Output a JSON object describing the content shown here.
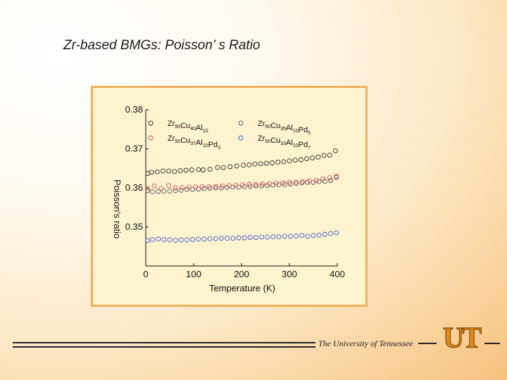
{
  "slide": {
    "title": "Zr-based BMGs: Poisson’ s Ratio",
    "footer_text": "The University of Tennessee",
    "logo_text": "UT"
  },
  "colors": {
    "frame_border": "#f2b05c",
    "plot_background": "#fdf3cf",
    "logo": "#e08a1c"
  },
  "chart_data": {
    "type": "scatter",
    "xlabel": "Temperature (K)",
    "ylabel": "Poisson's ratio",
    "xlim": [
      0,
      400
    ],
    "ylim": [
      0.34,
      0.38
    ],
    "x_ticks": [
      "0",
      "100",
      "200",
      "300",
      "400"
    ],
    "y_ticks": [
      "0.38",
      "0.37",
      "0.36",
      "0.35"
    ],
    "legend_placement": "top",
    "series": [
      {
        "legend_main": [
          "Zr",
          "Cu",
          "Al"
        ],
        "legend_subs": [
          "50",
          "40",
          "10"
        ],
        "color": "#2a2a2a",
        "points": [
          [
            4,
            0.3637
          ],
          [
            12,
            0.364
          ],
          [
            24,
            0.3641
          ],
          [
            36,
            0.3643
          ],
          [
            48,
            0.3643
          ],
          [
            60,
            0.3642
          ],
          [
            72,
            0.3644
          ],
          [
            84,
            0.3645
          ],
          [
            96,
            0.3646
          ],
          [
            110,
            0.3647
          ],
          [
            120,
            0.3646
          ],
          [
            134,
            0.3648
          ],
          [
            150,
            0.3652
          ],
          [
            162,
            0.3652
          ],
          [
            176,
            0.3654
          ],
          [
            190,
            0.3656
          ],
          [
            204,
            0.3658
          ],
          [
            216,
            0.3659
          ],
          [
            228,
            0.3661
          ],
          [
            240,
            0.3662
          ],
          [
            252,
            0.3663
          ],
          [
            264,
            0.3664
          ],
          [
            276,
            0.3666
          ],
          [
            288,
            0.3667
          ],
          [
            300,
            0.3669
          ],
          [
            312,
            0.3671
          ],
          [
            324,
            0.3672
          ],
          [
            336,
            0.3675
          ],
          [
            348,
            0.3677
          ],
          [
            360,
            0.3679
          ],
          [
            372,
            0.3683
          ],
          [
            384,
            0.3684
          ],
          [
            396,
            0.3695
          ]
        ]
      },
      {
        "legend_main": [
          "Zr",
          "Cu",
          "Al",
          "Pd"
        ],
        "legend_subs": [
          "50",
          "35",
          "10",
          "5"
        ],
        "color": "#555566",
        "points": [
          [
            4,
            0.3593
          ],
          [
            14,
            0.359
          ],
          [
            26,
            0.3591
          ],
          [
            38,
            0.3592
          ],
          [
            50,
            0.3592
          ],
          [
            62,
            0.3593
          ],
          [
            74,
            0.3594
          ],
          [
            86,
            0.3596
          ],
          [
            98,
            0.3596
          ],
          [
            110,
            0.3597
          ],
          [
            122,
            0.3598
          ],
          [
            134,
            0.3599
          ],
          [
            146,
            0.36
          ],
          [
            158,
            0.36
          ],
          [
            170,
            0.3601
          ],
          [
            182,
            0.3602
          ],
          [
            194,
            0.3602
          ],
          [
            206,
            0.3603
          ],
          [
            218,
            0.3604
          ],
          [
            230,
            0.3605
          ],
          [
            242,
            0.3605
          ],
          [
            254,
            0.3606
          ],
          [
            266,
            0.3607
          ],
          [
            278,
            0.3608
          ],
          [
            290,
            0.3609
          ],
          [
            302,
            0.361
          ],
          [
            314,
            0.3611
          ],
          [
            326,
            0.3613
          ],
          [
            338,
            0.3614
          ],
          [
            350,
            0.3614
          ],
          [
            362,
            0.3616
          ],
          [
            374,
            0.3617
          ],
          [
            386,
            0.3619
          ],
          [
            398,
            0.3627
          ]
        ]
      },
      {
        "legend_main": [
          "Zr",
          "Cu",
          "Al",
          "Pd"
        ],
        "legend_subs": [
          "50",
          "37",
          "10",
          "3"
        ],
        "color": "#d0505c",
        "points": [
          [
            4,
            0.3599
          ],
          [
            18,
            0.3605
          ],
          [
            32,
            0.3599
          ],
          [
            48,
            0.3606
          ],
          [
            62,
            0.36
          ],
          [
            76,
            0.3601
          ],
          [
            90,
            0.3602
          ],
          [
            104,
            0.3602
          ],
          [
            118,
            0.3603
          ],
          [
            132,
            0.3603
          ],
          [
            146,
            0.3604
          ],
          [
            160,
            0.3605
          ],
          [
            174,
            0.3606
          ],
          [
            188,
            0.3607
          ],
          [
            202,
            0.3608
          ],
          [
            216,
            0.3609
          ],
          [
            230,
            0.3609
          ],
          [
            244,
            0.361
          ],
          [
            258,
            0.3611
          ],
          [
            272,
            0.3612
          ],
          [
            286,
            0.3613
          ],
          [
            300,
            0.3614
          ],
          [
            314,
            0.3615
          ],
          [
            328,
            0.3616
          ],
          [
            342,
            0.3618
          ],
          [
            356,
            0.3619
          ],
          [
            370,
            0.3623
          ],
          [
            384,
            0.3626
          ],
          [
            398,
            0.363
          ]
        ]
      },
      {
        "legend_main": [
          "Zr",
          "Cu",
          "Al",
          "Pd"
        ],
        "legend_subs": [
          "50",
          "33",
          "10",
          "7"
        ],
        "color": "#3a5bd6",
        "points": [
          [
            4,
            0.3465
          ],
          [
            14,
            0.3468
          ],
          [
            26,
            0.3469
          ],
          [
            38,
            0.3468
          ],
          [
            50,
            0.3467
          ],
          [
            62,
            0.3466
          ],
          [
            74,
            0.3467
          ],
          [
            86,
            0.3467
          ],
          [
            98,
            0.3468
          ],
          [
            110,
            0.3469
          ],
          [
            122,
            0.3469
          ],
          [
            134,
            0.347
          ],
          [
            146,
            0.347
          ],
          [
            158,
            0.3471
          ],
          [
            170,
            0.3471
          ],
          [
            182,
            0.3471
          ],
          [
            194,
            0.3472
          ],
          [
            206,
            0.3472
          ],
          [
            218,
            0.3473
          ],
          [
            230,
            0.3473
          ],
          [
            242,
            0.3474
          ],
          [
            254,
            0.3474
          ],
          [
            266,
            0.3475
          ],
          [
            278,
            0.3475
          ],
          [
            290,
            0.3476
          ],
          [
            302,
            0.3476
          ],
          [
            314,
            0.3477
          ],
          [
            326,
            0.3478
          ],
          [
            338,
            0.3476
          ],
          [
            350,
            0.3478
          ],
          [
            362,
            0.3479
          ],
          [
            374,
            0.3481
          ],
          [
            386,
            0.3483
          ],
          [
            398,
            0.3485
          ]
        ]
      }
    ]
  }
}
